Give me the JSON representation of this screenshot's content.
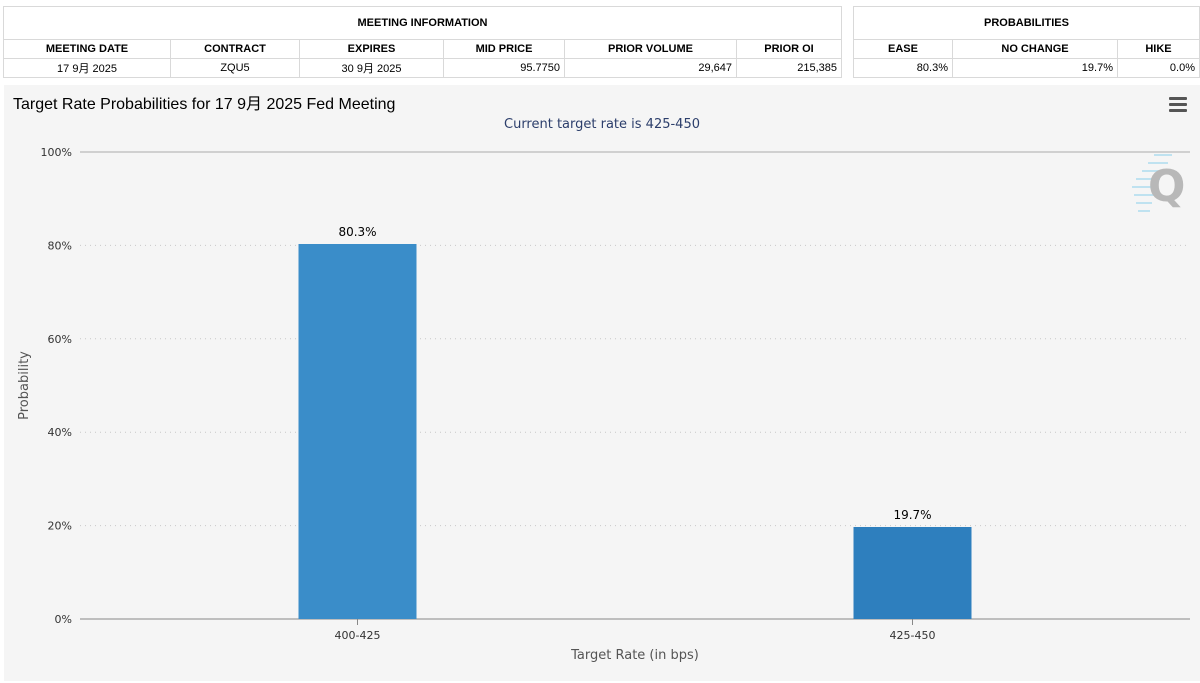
{
  "meeting_info": {
    "group_header": "MEETING INFORMATION",
    "headers": [
      "MEETING DATE",
      "CONTRACT",
      "EXPIRES",
      "MID PRICE",
      "PRIOR VOLUME",
      "PRIOR OI"
    ],
    "row": {
      "meeting_date": "17 9月 2025",
      "contract": "ZQU5",
      "expires": "30 9月 2025",
      "mid_price": "95.7750",
      "prior_volume": "29,647",
      "prior_oi": "215,385"
    }
  },
  "probabilities": {
    "group_header": "PROBABILITIES",
    "headers": [
      "EASE",
      "NO CHANGE",
      "HIKE"
    ],
    "row": {
      "ease": "80.3%",
      "no_change": "19.7%",
      "hike": "0.0%"
    }
  },
  "chart": {
    "title": "Target Rate Probabilities for 17 9月 2025 Fed Meeting",
    "subtitle": "Current target rate is 425-450",
    "menu_icon": "hamburger-menu-icon",
    "watermark_icon": "cme-q-logo-icon"
  },
  "chart_data": {
    "type": "bar",
    "title": "Target Rate Probabilities for 17 9月 2025 Fed Meeting",
    "subtitle": "Current target rate is 425-450",
    "xlabel": "Target Rate (in bps)",
    "ylabel": "Probability",
    "categories": [
      "400-425",
      "425-450"
    ],
    "values": [
      80.3,
      19.7
    ],
    "data_labels": [
      "80.3%",
      "19.7%"
    ],
    "ylim": [
      0,
      100
    ],
    "yticks": [
      0,
      20,
      40,
      60,
      80,
      100
    ],
    "ytick_labels": [
      "0%",
      "20%",
      "40%",
      "60%",
      "80%",
      "100%"
    ],
    "bar_colors": [
      "#3a8dc9",
      "#2e7fbe"
    ],
    "grid": true,
    "legend": "none"
  }
}
